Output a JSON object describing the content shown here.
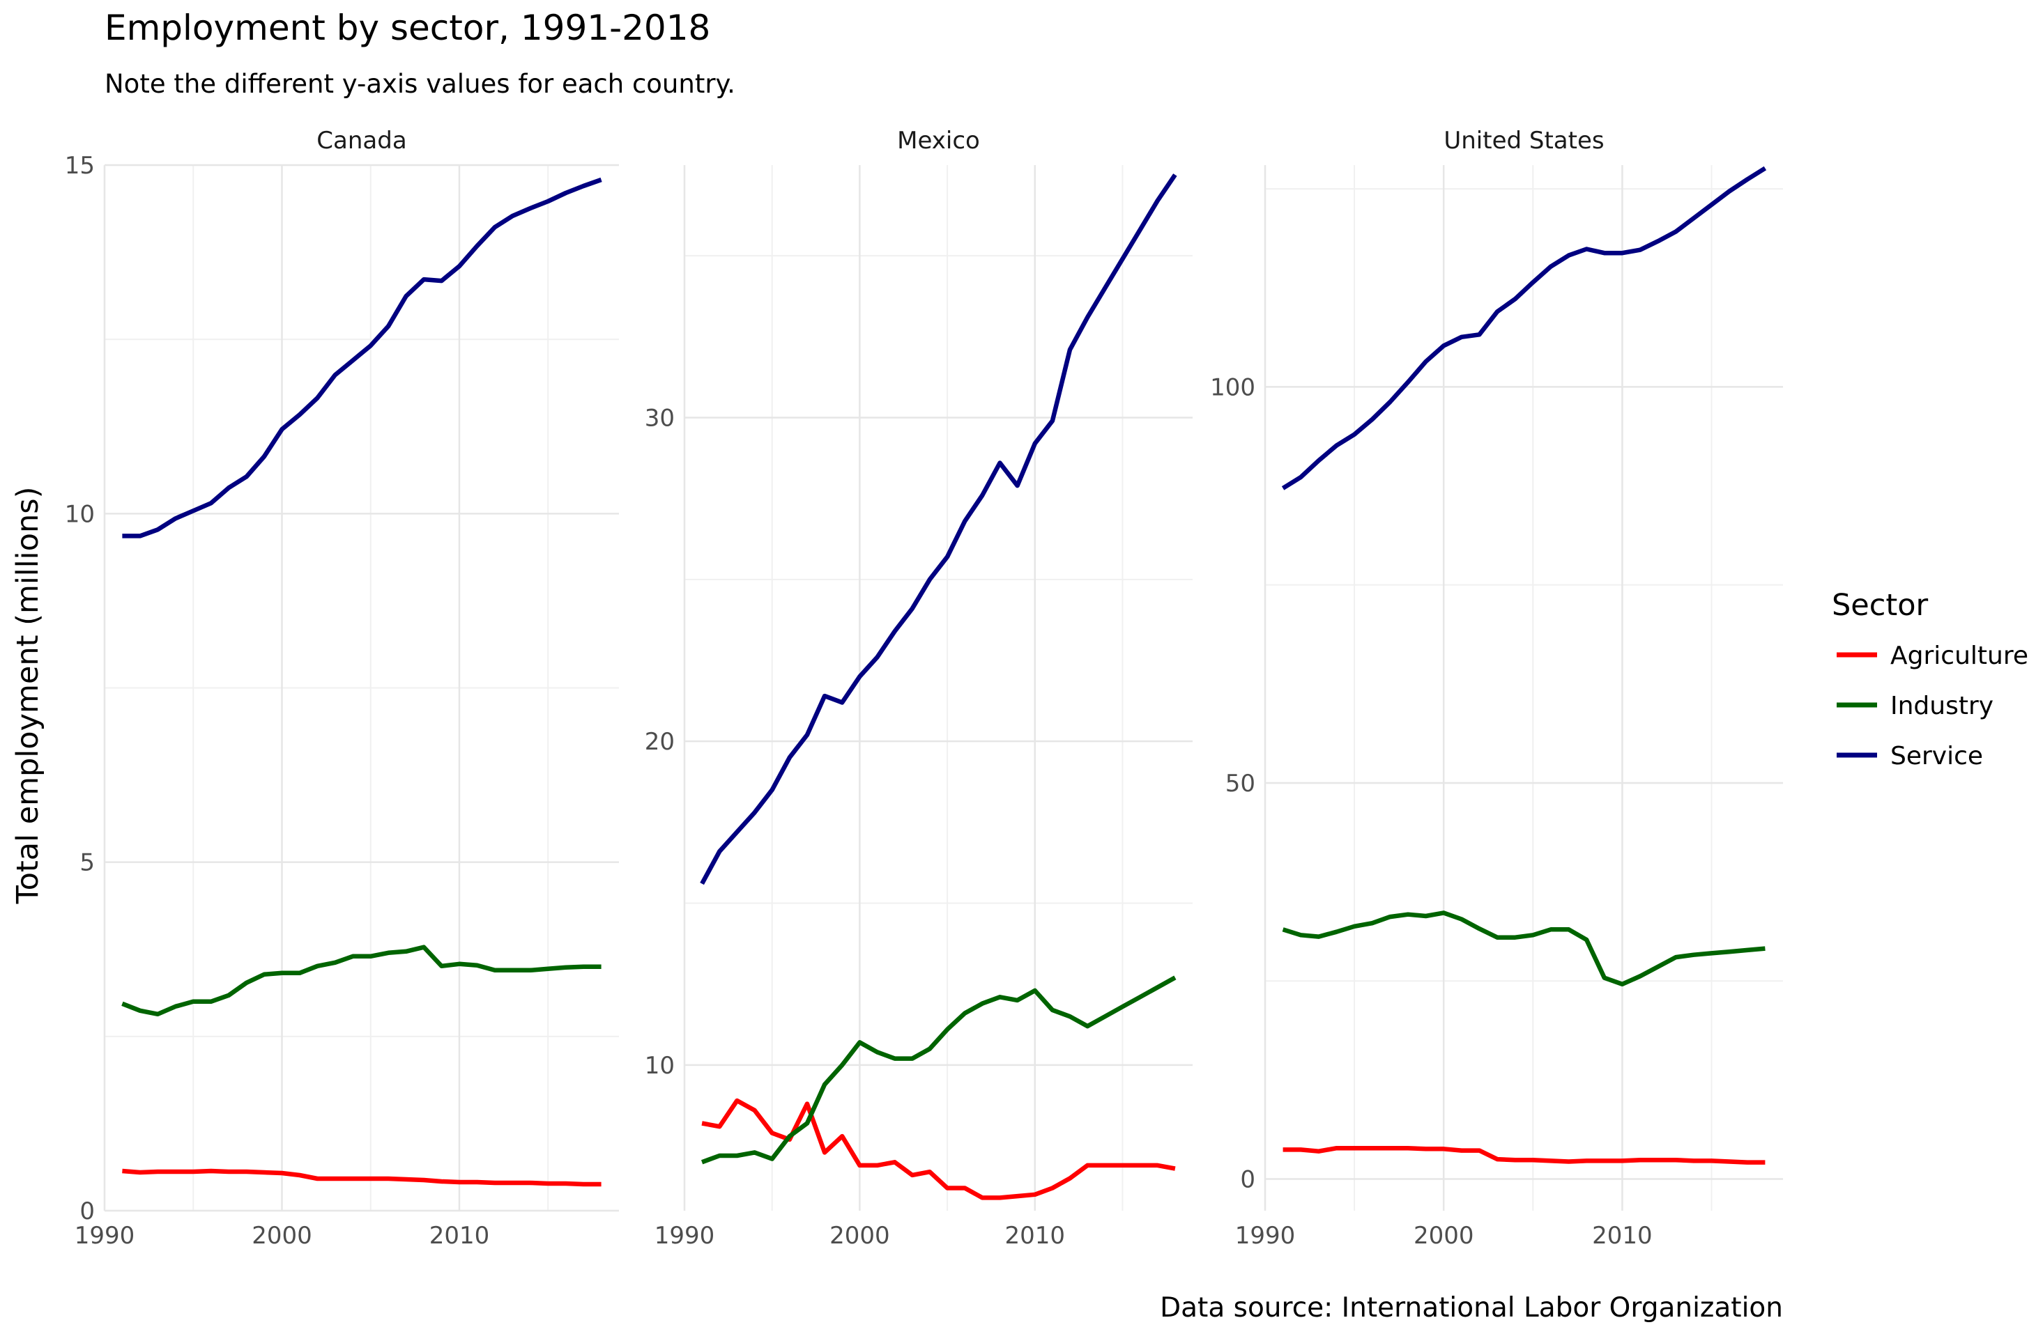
{
  "chart_data": {
    "type": "line",
    "title": "Employment by sector, 1991-2018",
    "subtitle": "Note the different y-axis values for each country.",
    "ylabel": "Total employment (millions)",
    "caption": "Data source: International Labor Organization",
    "legend": {
      "title": "Sector",
      "placement": "right",
      "entries": [
        {
          "name": "Agriculture",
          "color": "#ff0000"
        },
        {
          "name": "Industry",
          "color": "#006400"
        },
        {
          "name": "Service",
          "color": "#000080"
        }
      ]
    },
    "grid": true,
    "x": [
      1991,
      1992,
      1993,
      1994,
      1995,
      1996,
      1997,
      1998,
      1999,
      2000,
      2001,
      2002,
      2003,
      2004,
      2005,
      2006,
      2007,
      2008,
      2009,
      2010,
      2011,
      2012,
      2013,
      2014,
      2015,
      2016,
      2017,
      2018
    ],
    "xlim": [
      1990,
      2019
    ],
    "xticks": [
      1990,
      2000,
      2010
    ],
    "panels": [
      {
        "name": "Canada",
        "ylim": [
          0,
          15
        ],
        "yticks": [
          0,
          5,
          10,
          15
        ],
        "series": [
          {
            "name": "Agriculture",
            "values": [
              0.57,
              0.55,
              0.56,
              0.56,
              0.56,
              0.57,
              0.56,
              0.56,
              0.55,
              0.54,
              0.51,
              0.46,
              0.46,
              0.46,
              0.46,
              0.46,
              0.45,
              0.44,
              0.42,
              0.41,
              0.41,
              0.4,
              0.4,
              0.4,
              0.39,
              0.39,
              0.38,
              0.38
            ]
          },
          {
            "name": "Industry",
            "values": [
              2.97,
              2.87,
              2.82,
              2.93,
              3.0,
              3.0,
              3.09,
              3.27,
              3.39,
              3.41,
              3.41,
              3.51,
              3.56,
              3.65,
              3.65,
              3.7,
              3.72,
              3.78,
              3.51,
              3.54,
              3.52,
              3.45,
              3.45,
              3.45,
              3.47,
              3.49,
              3.5,
              3.5
            ]
          },
          {
            "name": "Service",
            "values": [
              9.68,
              9.68,
              9.77,
              9.93,
              10.04,
              10.15,
              10.37,
              10.53,
              10.82,
              11.21,
              11.42,
              11.66,
              11.99,
              12.2,
              12.41,
              12.69,
              13.12,
              13.36,
              13.34,
              13.55,
              13.84,
              14.11,
              14.27,
              14.38,
              14.48,
              14.6,
              14.7,
              14.79
            ]
          }
        ]
      },
      {
        "name": "Mexico",
        "ylim": [
          5.5,
          37.8
        ],
        "yticks": [
          10,
          20,
          30
        ],
        "series": [
          {
            "name": "Agriculture",
            "values": [
              8.2,
              8.1,
              8.9,
              8.6,
              7.9,
              7.7,
              8.8,
              7.3,
              7.8,
              6.9,
              6.9,
              7.0,
              6.6,
              6.7,
              6.2,
              6.2,
              5.9,
              5.9,
              5.95,
              6.0,
              6.2,
              6.5,
              6.9,
              6.9,
              6.9,
              6.9,
              6.9,
              6.8
            ]
          },
          {
            "name": "Industry",
            "values": [
              7.0,
              7.2,
              7.2,
              7.3,
              7.1,
              7.8,
              8.2,
              9.4,
              10.0,
              10.7,
              10.4,
              10.2,
              10.2,
              10.5,
              11.1,
              11.6,
              11.9,
              12.1,
              12.0,
              12.3,
              11.7,
              11.5,
              11.2,
              11.5,
              11.8,
              12.1,
              12.4,
              12.7
            ]
          },
          {
            "name": "Service",
            "values": [
              15.6,
              16.6,
              17.2,
              17.8,
              18.5,
              19.5,
              20.2,
              21.4,
              21.2,
              22.0,
              22.6,
              23.4,
              24.1,
              25.0,
              25.7,
              26.8,
              27.6,
              28.6,
              27.9,
              29.2,
              29.9,
              32.1,
              33.1,
              34.0,
              34.9,
              35.8,
              36.7,
              37.5
            ]
          }
        ]
      },
      {
        "name": "United States",
        "ylim": [
          -4,
          128
        ],
        "yticks": [
          0,
          50,
          100
        ],
        "series": [
          {
            "name": "Agriculture",
            "values": [
              3.7,
              3.7,
              3.5,
              3.9,
              3.9,
              3.9,
              3.9,
              3.9,
              3.8,
              3.8,
              3.6,
              3.6,
              2.5,
              2.4,
              2.4,
              2.3,
              2.2,
              2.3,
              2.3,
              2.3,
              2.4,
              2.4,
              2.4,
              2.3,
              2.3,
              2.2,
              2.1,
              2.1
            ]
          },
          {
            "name": "Industry",
            "values": [
              31.5,
              30.8,
              30.6,
              31.2,
              31.9,
              32.3,
              33.1,
              33.4,
              33.2,
              33.6,
              32.8,
              31.6,
              30.5,
              30.5,
              30.8,
              31.5,
              31.5,
              30.2,
              25.4,
              24.6,
              25.6,
              26.8,
              28.0,
              28.3,
              28.5,
              28.7,
              28.9,
              29.1
            ]
          },
          {
            "name": "Service",
            "values": [
              87.2,
              88.6,
              90.7,
              92.6,
              94.0,
              95.9,
              98.1,
              100.6,
              103.2,
              105.2,
              106.3,
              106.6,
              109.5,
              111.1,
              113.2,
              115.2,
              116.6,
              117.4,
              116.9,
              116.9,
              117.3,
              118.4,
              119.6,
              121.3,
              123.0,
              124.7,
              126.2,
              127.6
            ]
          }
        ]
      }
    ]
  }
}
